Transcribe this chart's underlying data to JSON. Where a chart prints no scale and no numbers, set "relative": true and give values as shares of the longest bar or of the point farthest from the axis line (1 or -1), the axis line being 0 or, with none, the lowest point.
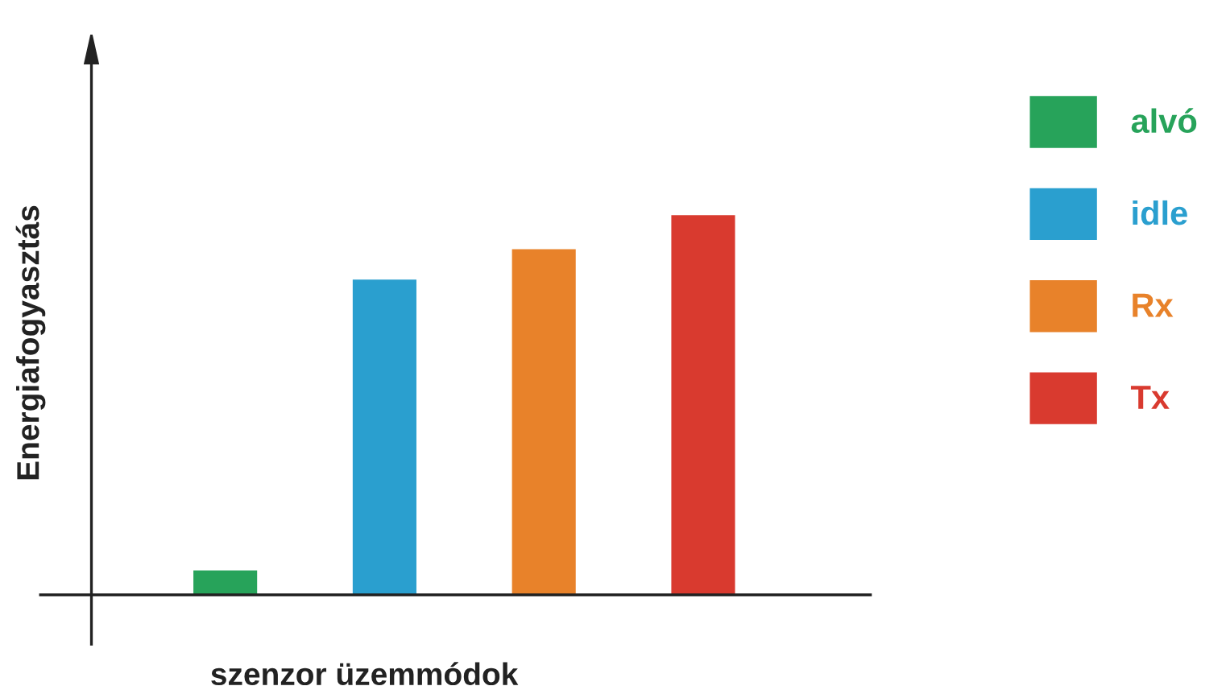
{
  "chart_data": {
    "type": "bar",
    "relative": true,
    "stacked": true,
    "xlabel": "szenzor üzemmódok",
    "ylabel": "Energiafogyasztás",
    "categories": [
      null,
      null,
      null,
      null
    ],
    "legend": "right",
    "series": [
      {
        "name": "alvó",
        "color": "#27a35a",
        "values": [
          0.064,
          null,
          null,
          null
        ]
      },
      {
        "name": "idle",
        "color": "#2a9fcf",
        "values": [
          null,
          0.83,
          null,
          null
        ]
      },
      {
        "name": "Rx",
        "color": "#e8822a",
        "values": [
          null,
          null,
          0.91,
          null
        ]
      },
      {
        "name": "Tx",
        "color": "#d93a2f",
        "values": [
          null,
          null,
          null,
          1
        ]
      }
    ]
  }
}
